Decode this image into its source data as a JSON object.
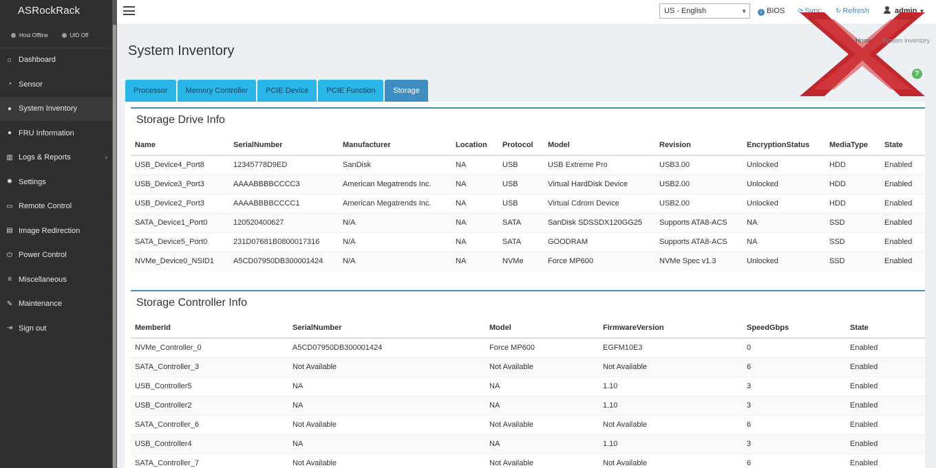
{
  "sidebar": {
    "brand": "ASRockRack",
    "host_status": "Host Offline",
    "uid_status": "UID Off",
    "items": [
      {
        "label": "Dashboard",
        "icon": "dashboard-icon",
        "glyph": "⌂"
      },
      {
        "label": "Sensor",
        "icon": "gauge-icon",
        "glyph": "◔"
      },
      {
        "label": "System Inventory",
        "icon": "info-icon",
        "glyph": "●"
      },
      {
        "label": "FRU Information",
        "icon": "info-icon",
        "glyph": "●"
      },
      {
        "label": "Logs & Reports",
        "icon": "bar-chart-icon",
        "glyph": "▥"
      },
      {
        "label": "Settings",
        "icon": "gear-icon",
        "glyph": "✹"
      },
      {
        "label": "Remote Control",
        "icon": "monitor-icon",
        "glyph": "▭"
      },
      {
        "label": "Image Redirection",
        "icon": "drive-icon",
        "glyph": "▤"
      },
      {
        "label": "Power Control",
        "icon": "power-icon",
        "glyph": "⏻"
      },
      {
        "label": "Miscellaneous",
        "icon": "list-icon",
        "glyph": "≡"
      },
      {
        "label": "Maintenance",
        "icon": "wrench-icon",
        "glyph": "✎"
      },
      {
        "label": "Sign out",
        "icon": "sign-out-icon",
        "glyph": "⇥"
      }
    ]
  },
  "topbar": {
    "language": "US - English",
    "bios": "BIOS",
    "sync": "Sync",
    "refresh": "Refresh",
    "user": "admin"
  },
  "page": {
    "title": "System Inventory",
    "breadcrumb_home": "Home",
    "breadcrumb_current": "System Inventory"
  },
  "tabs": [
    "Processor",
    "Memory Controller",
    "PCIE Device",
    "PCIE Function",
    "Storage"
  ],
  "storage_drive": {
    "title": "Storage Drive Info",
    "columns": [
      "Name",
      "SerialNumber",
      "Manufacturer",
      "Location",
      "Protocol",
      "Model",
      "Revision",
      "EncryptionStatus",
      "MediaType",
      "State"
    ],
    "rows": [
      [
        "USB_Device4_Port8",
        "12345778D9ED",
        "SanDisk",
        "NA",
        "USB",
        "USB Extreme Pro",
        "USB3.00",
        "Unlocked",
        "HDD",
        "Enabled"
      ],
      [
        "USB_Device3_Port3",
        "AAAABBBBCCCC3",
        "American Megatrends Inc.",
        "NA",
        "USB",
        "Virtual HardDisk Device",
        "USB2.00",
        "Unlocked",
        "HDD",
        "Enabled"
      ],
      [
        "USB_Device2_Port3",
        "AAAABBBBCCCC1",
        "American Megatrends Inc.",
        "NA",
        "USB",
        "Virtual Cdrom Device",
        "USB2.00",
        "Unlocked",
        "HDD",
        "Enabled"
      ],
      [
        "SATA_Device1_Port0",
        "120520400627",
        "N/A",
        "NA",
        "SATA",
        "SanDisk SDSSDX120GG25",
        "Supports ATA8-ACS",
        "NA",
        "SSD",
        "Enabled"
      ],
      [
        "SATA_Device5_Port0",
        "231D07681B0800017316",
        "N/A",
        "NA",
        "SATA",
        "GOODRAM",
        "Supports ATA8-ACS",
        "NA",
        "SSD",
        "Enabled"
      ],
      [
        "NVMe_Device0_NSID1",
        "A5CD07950DB300001424",
        "N/A",
        "NA",
        "NVMe",
        "Force MP600",
        "NVMe Spec v1.3",
        "Unlocked",
        "SSD",
        "Enabled"
      ]
    ]
  },
  "storage_controller": {
    "title": "Storage Controller Info",
    "columns": [
      "MemberId",
      "SerialNumber",
      "Model",
      "FirmwareVersion",
      "SpeedGbps",
      "State"
    ],
    "rows": [
      [
        "NVMe_Controller_0",
        "A5CD07950DB300001424",
        "Force MP600",
        "EGFM10E3",
        "0",
        "Enabled"
      ],
      [
        "SATA_Controller_3",
        "Not Available",
        "Not Available",
        "Not Available",
        "6",
        "Enabled"
      ],
      [
        "USB_Controller5",
        "NA",
        "NA",
        "1.10",
        "3",
        "Enabled"
      ],
      [
        "USB_Controller2",
        "NA",
        "NA",
        "1.10",
        "3",
        "Enabled"
      ],
      [
        "SATA_Controller_6",
        "Not Available",
        "Not Available",
        "Not Available",
        "6",
        "Enabled"
      ],
      [
        "USB_Controller4",
        "NA",
        "NA",
        "1.10",
        "3",
        "Enabled"
      ],
      [
        "SATA_Controller_7",
        "Not Available",
        "Not Available",
        "Not Available",
        "6",
        "Enabled"
      ]
    ]
  },
  "colors": {
    "sidebar_bg": "#2f2f2f",
    "tab": "#29b6e6",
    "tab_active": "#3f8ec3",
    "box_accent": "#3c8dbc",
    "logo_red": "#c0282d"
  }
}
